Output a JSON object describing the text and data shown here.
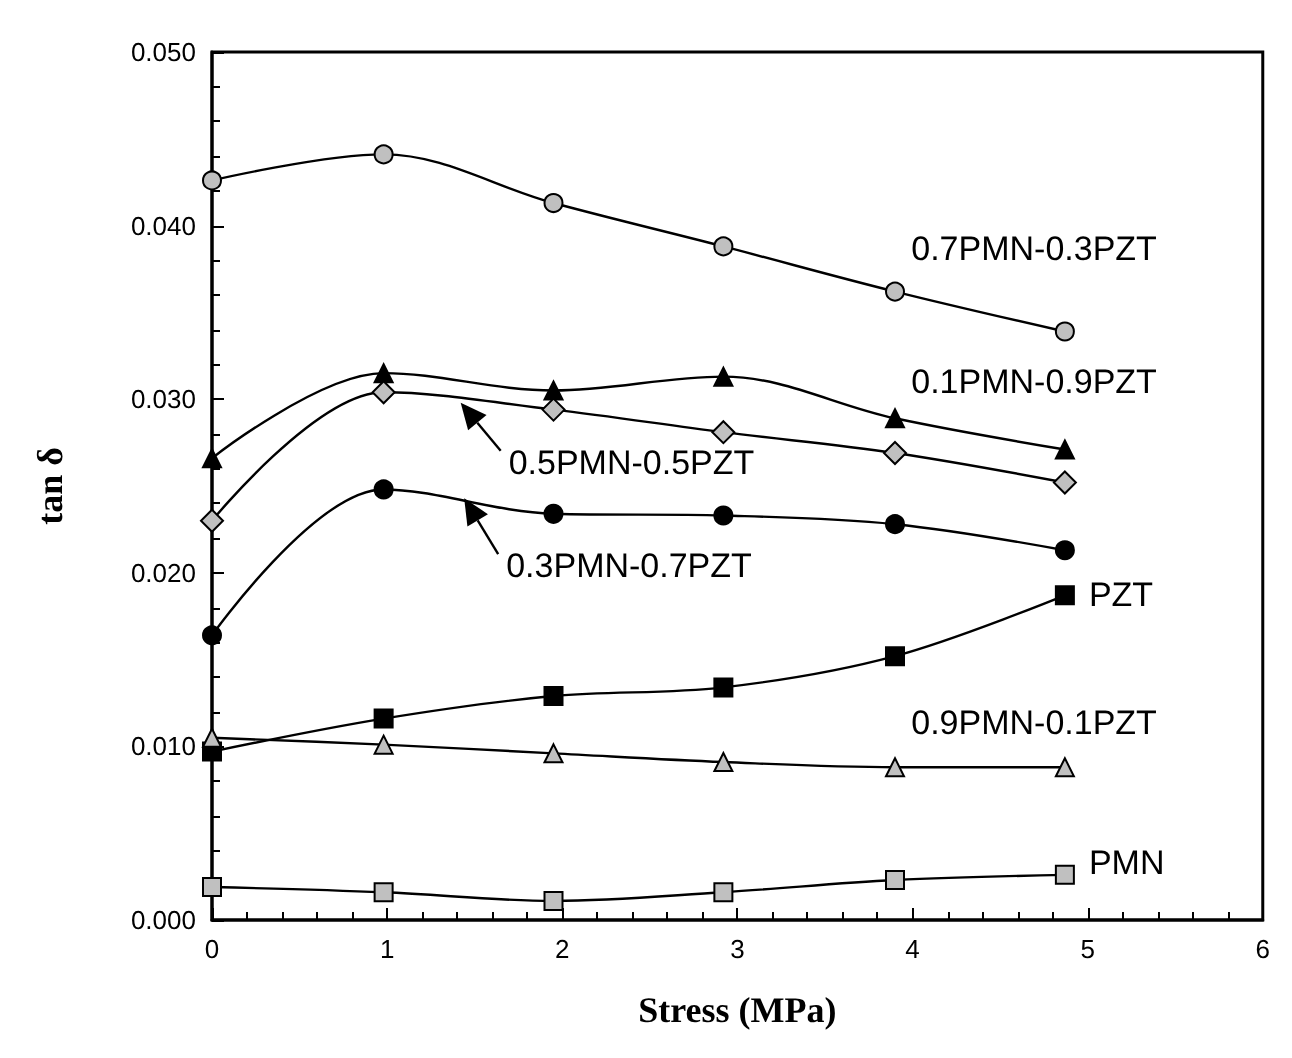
{
  "chart_data": {
    "type": "line",
    "xlabel": "Stress (MPa)",
    "ylabel": "tan δ",
    "xlim": [
      0,
      6
    ],
    "xticks": [
      0,
      1,
      2,
      3,
      4,
      5,
      6
    ],
    "ylim": [
      0,
      0.05
    ],
    "yticks": [
      {
        "value": 0,
        "label": "0.000"
      },
      {
        "value": 0.01,
        "label": "0.010"
      },
      {
        "value": 0.02,
        "label": "0.020"
      },
      {
        "value": 0.03,
        "label": "0.030"
      },
      {
        "value": 0.04,
        "label": "0.040"
      },
      {
        "value": 0.05,
        "label": "0.050"
      }
    ],
    "grid": false,
    "line_style": "solid",
    "x": [
      0,
      0.98,
      1.95,
      2.92,
      3.9,
      4.87
    ],
    "series": [
      {
        "color": "#c0c0c0",
        "marker": "circle",
        "values": [
          0.0426,
          0.0441,
          0.0413,
          0.0388,
          0.0362,
          0.0339
        ]
      },
      {
        "color": "#000000",
        "marker": "triangle",
        "values": [
          0.0266,
          0.0315,
          0.0305,
          0.0313,
          0.0289,
          0.0271
        ]
      },
      {
        "color": "#c0c0c0",
        "marker": "diamond",
        "values": [
          0.023,
          0.0304,
          0.0294,
          0.0281,
          0.0269,
          0.0252
        ]
      },
      {
        "color": "#000000",
        "marker": "circle",
        "values": [
          0.0164,
          0.0248,
          0.0234,
          0.0233,
          0.0228,
          0.0213
        ]
      },
      {
        "color": "#000000",
        "marker": "square",
        "values": [
          0.0097,
          0.0116,
          0.0129,
          0.0134,
          0.0152,
          0.0187
        ]
      },
      {
        "color": "#c0c0c0",
        "marker": "triangle",
        "values": [
          0.0105,
          0.0101,
          0.0096,
          0.0091,
          0.0088,
          0.0088
        ]
      },
      {
        "color": "#c0c0c0",
        "marker": "square",
        "values": [
          0.0019,
          0.0016,
          0.0011,
          0.0016,
          0.0023,
          0.0026
        ]
      }
    ],
    "annotations": [
      {
        "text": "0.7PMN-0.3PZT",
        "x": 4.87,
        "y": 0.0339
      },
      {
        "text": "0.1PMN-0.9PZT",
        "x": 4.87,
        "y": 0.0271
      },
      {
        "text": "0.5PMN-0.5PZT",
        "x": 1.42,
        "y": 0.0298
      },
      {
        "text": "0.3PMN-0.7PZT",
        "x": 1.44,
        "y": 0.0243
      },
      {
        "text": "PZT",
        "x": 4.87,
        "y": 0.0187
      },
      {
        "text": "0.9PMN-0.1PZT",
        "x": 4.87,
        "y": 0.0088
      },
      {
        "text": "PMN",
        "x": 4.87,
        "y": 0.0026
      }
    ]
  }
}
